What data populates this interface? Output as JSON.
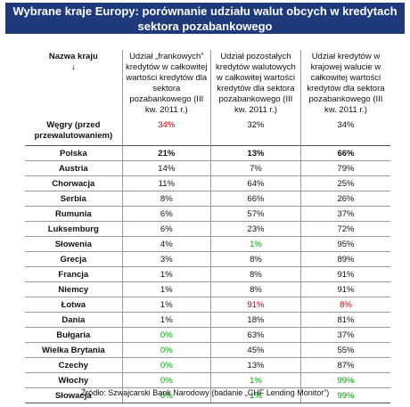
{
  "title_line1": "Wybrane kraje Europy: porównanie udziału walut obcych w kredytach",
  "title_line2": "sektora pozabankowego",
  "headers": {
    "name": "Nazwa kraju",
    "name_arrow": "↓",
    "c1": "Udział „frankowych” kredytów w całkowitej wartości kredytów dla sektora pozabankowego (III kw. 2011 r.)",
    "c2": "Udział pozostałych kredytów walutowych w całkowitej wartości kredytów dla sektora pozabankowego (III kw. 2011 r.)",
    "c3": "Udział kredytów w krajowej walucie w całkowitej wartości kredytów dla sektora pozabankowego (III kw. 2011 r.)"
  },
  "hungary": {
    "name": "Węgry (przed przewalutowaniem)",
    "c1": "34%",
    "c2": "32%",
    "c3": "34%"
  },
  "rows": [
    {
      "name": "Polska",
      "c1": "21%",
      "c2": "13%",
      "c3": "66%"
    },
    {
      "name": "Austria",
      "c1": "14%",
      "c2": "7%",
      "c3": "79%"
    },
    {
      "name": "Chorwacja",
      "c1": "11%",
      "c2": "64%",
      "c3": "25%"
    },
    {
      "name": "Serbia",
      "c1": "8%",
      "c2": "66%",
      "c3": "26%"
    },
    {
      "name": "Rumunia",
      "c1": "6%",
      "c2": "57%",
      "c3": "37%"
    },
    {
      "name": "Luksemburg",
      "c1": "6%",
      "c2": "23%",
      "c3": "72%"
    },
    {
      "name": "Słowenia",
      "c1": "4%",
      "c2": "1%",
      "c3": "95%"
    },
    {
      "name": "Grecja",
      "c1": "3%",
      "c2": "8%",
      "c3": "89%"
    },
    {
      "name": "Francja",
      "c1": "1%",
      "c2": "8%",
      "c3": "91%"
    },
    {
      "name": "Niemcy",
      "c1": "1%",
      "c2": "8%",
      "c3": "91%"
    },
    {
      "name": "Łotwa",
      "c1": "1%",
      "c2": "91%",
      "c3": "8%"
    },
    {
      "name": "Dania",
      "c1": "1%",
      "c2": "18%",
      "c3": "81%"
    },
    {
      "name": "Bułgaria",
      "c1": "0%",
      "c2": "63%",
      "c3": "37%"
    },
    {
      "name": "Wielka Brytania",
      "c1": "0%",
      "c2": "45%",
      "c3": "55%"
    },
    {
      "name": "Czechy",
      "c1": "0%",
      "c2": "13%",
      "c3": "87%"
    },
    {
      "name": "Włochy",
      "c1": "0%",
      "c2": "1%",
      "c3": "99%"
    },
    {
      "name": "Słowacja",
      "c1": "0%",
      "c2": "1%",
      "c3": "99%"
    }
  ],
  "source": "Źródło: Szwajcarski Bank Narodowy (badanie „CHF Lending Monitor”)"
}
